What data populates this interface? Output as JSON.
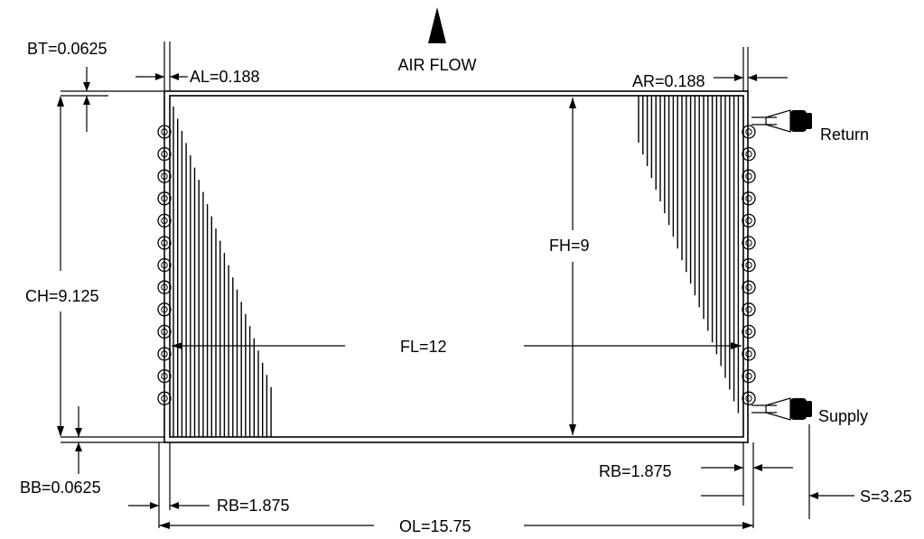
{
  "labels": {
    "air_flow": "AIR FLOW",
    "bt": "BT=0.0625",
    "al": "AL=0.188",
    "ar": "AR=0.188",
    "ch": "CH=9.125",
    "fh": "FH=9",
    "fl": "FL=12",
    "bb": "BB=0.0625",
    "rb_left": "RB=1.875",
    "rb_right": "RB=1.875",
    "ol": "OL=15.75",
    "s": "S=3.25",
    "return": "Return",
    "supply": "Supply"
  }
}
